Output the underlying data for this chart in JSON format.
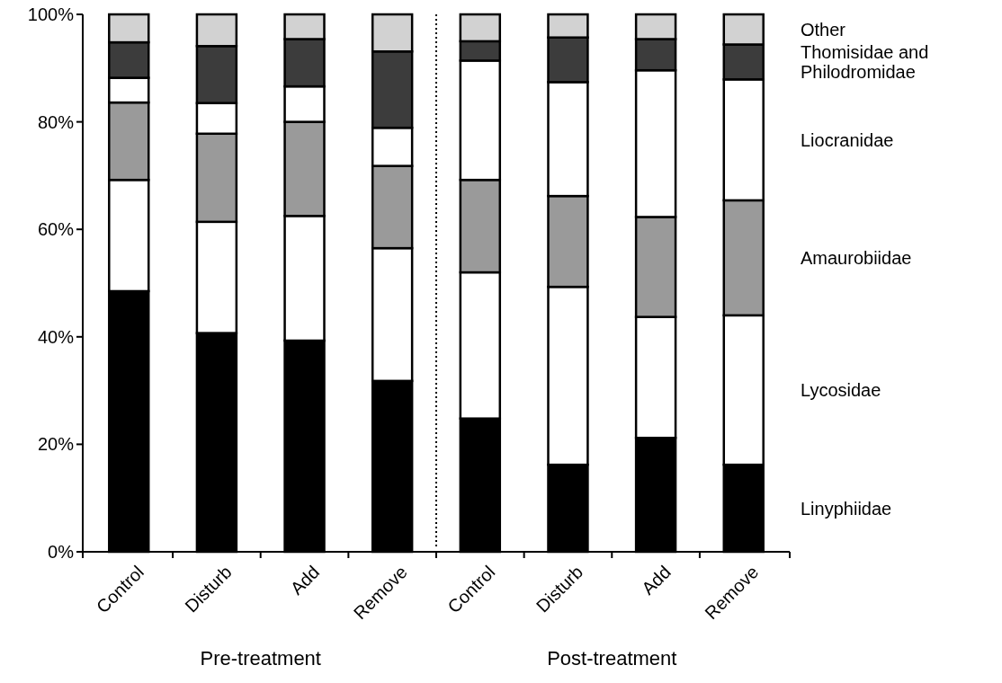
{
  "chart_data": {
    "type": "bar",
    "stacked": true,
    "categories": [
      "Control",
      "Disturb",
      "Add",
      "Remove",
      "Control",
      "Disturb",
      "Add",
      "Remove"
    ],
    "series": [
      {
        "name": "Linyphiidae",
        "color": "#000000",
        "values": [
          48.5,
          40.7,
          39.3,
          31.8,
          24.8,
          16.2,
          21.2,
          16.2
        ]
      },
      {
        "name": "Lycosidae",
        "color": "#ffffff",
        "values": [
          20.7,
          20.7,
          23.2,
          24.7,
          27.2,
          33.1,
          22.5,
          27.8
        ]
      },
      {
        "name": "Amaurobiidae",
        "color": "#9a9a9a",
        "values": [
          14.4,
          16.4,
          17.5,
          15.3,
          17.2,
          16.9,
          18.6,
          21.4
        ]
      },
      {
        "name": "Liocranidae",
        "color": "#ffffff",
        "values": [
          4.6,
          5.7,
          6.6,
          7.1,
          22.2,
          21.2,
          27.3,
          22.5
        ]
      },
      {
        "name": "Thomisidae and Philodromidae",
        "color": "#3c3c3c",
        "values": [
          6.6,
          10.6,
          8.8,
          14.2,
          3.6,
          8.3,
          5.8,
          6.5
        ]
      },
      {
        "name": "Other",
        "color": "#d2d2d2",
        "values": [
          5.2,
          5.9,
          4.6,
          6.9,
          5.0,
          4.3,
          4.6,
          5.6
        ]
      }
    ],
    "ylim": [
      0,
      100
    ],
    "yticks": [
      {
        "value": 0,
        "label": "0%"
      },
      {
        "value": 20,
        "label": "20%"
      },
      {
        "value": 40,
        "label": "40%"
      },
      {
        "value": 60,
        "label": "60%"
      },
      {
        "value": 80,
        "label": "80%"
      },
      {
        "value": 100,
        "label": "100%"
      }
    ],
    "annotations": [
      "Pre-treatment",
      "Post-treatment"
    ],
    "grid": false
  }
}
